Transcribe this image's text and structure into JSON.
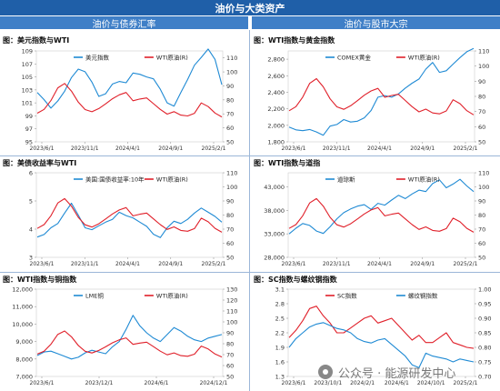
{
  "header": {
    "title": "油价与大类资产"
  },
  "sections": {
    "left": "油价与债券汇率",
    "right": "油价与股市大宗"
  },
  "watermark": {
    "text": "公众号 · 能源研发中心"
  },
  "colors": {
    "blue": "#1f8ad4",
    "red": "#e0202a",
    "header_bg": "#1f5fa8",
    "subheader_bg": "#3f7fc7"
  },
  "chart_data": [
    {
      "id": "c1",
      "title": "图：美元指数与WTI",
      "type": "line",
      "x_ticks": [
        "2023/6/1",
        "2023/11/1",
        "2024/4/1",
        "2024/9/1",
        "2025/2/1"
      ],
      "y_left": {
        "min": 95,
        "max": 109,
        "ticks": [
          "95",
          "97",
          "99",
          "101",
          "103",
          "105",
          "107",
          "109"
        ]
      },
      "y_right": {
        "min": 50,
        "max": 115,
        "ticks": [
          "50",
          "60",
          "70",
          "80",
          "90",
          "100",
          "110"
        ]
      },
      "series": [
        {
          "name": "美元指数",
          "axis": "left",
          "color": "#1f8ad4",
          "values": [
            102.6,
            101.5,
            100.2,
            101.3,
            102.8,
            104.9,
            106.2,
            105.8,
            104.2,
            102.0,
            102.4,
            103.9,
            104.3,
            104.1,
            105.6,
            105.4,
            105.0,
            104.7,
            103.1,
            101.0,
            100.5,
            102.6,
            104.6,
            106.8,
            108.0,
            109.3,
            107.7,
            103.8
          ]
        },
        {
          "name": "WTI原油(R)",
          "axis": "right",
          "color": "#e0202a",
          "values": [
            70.5,
            73.2,
            79.5,
            88.6,
            91.7,
            86.3,
            78.4,
            73.1,
            71.5,
            73.8,
            77.2,
            80.8,
            83.6,
            85.3,
            79.4,
            80.6,
            81.4,
            77.3,
            73.2,
            69.8,
            71.6,
            69.1,
            68.5,
            70.4,
            77.8,
            75.2,
            70.6,
            67.8
          ]
        }
      ]
    },
    {
      "id": "c2",
      "title": "图：WTI指数与黄金指数",
      "type": "line",
      "x_ticks": [
        "2023/6/1",
        "2023/11/1",
        "2024/4/1",
        "2024/9/1",
        "2025/2/1"
      ],
      "y_left": {
        "min": 1800,
        "max": 2900,
        "ticks": [
          "1,800",
          "2,000",
          "2,200",
          "2,400",
          "2,600",
          "2,800"
        ]
      },
      "y_right": {
        "min": 50,
        "max": 110,
        "ticks": [
          "50",
          "60",
          "70",
          "80",
          "90",
          "100",
          "110"
        ]
      },
      "series": [
        {
          "name": "COMEX黄金",
          "axis": "left",
          "color": "#1f8ad4",
          "values": [
            1978,
            1945,
            1935,
            1950,
            1920,
            1880,
            1990,
            2010,
            2070,
            2040,
            2050,
            2090,
            2180,
            2340,
            2360,
            2340,
            2380,
            2450,
            2510,
            2560,
            2680,
            2760,
            2640,
            2660,
            2740,
            2820,
            2890,
            2930
          ]
        },
        {
          "name": "WTI原油(R)",
          "axis": "right",
          "color": "#e0202a",
          "values": [
            70.5,
            73.2,
            79.5,
            88.6,
            91.7,
            86.3,
            78.4,
            73.1,
            71.5,
            73.8,
            77.2,
            80.8,
            83.6,
            85.3,
            79.4,
            80.6,
            81.4,
            77.3,
            73.2,
            69.8,
            71.6,
            69.1,
            68.5,
            70.4,
            77.8,
            75.2,
            70.6,
            67.8
          ]
        }
      ]
    },
    {
      "id": "c3",
      "title": "图：美债收益率与WTI",
      "type": "line",
      "x_ticks": [
        "2023/6/1",
        "2023/11/1",
        "2024/4/1",
        "2024/9/1",
        "2025/2/1"
      ],
      "y_left": {
        "min": 3,
        "max": 6,
        "ticks": [
          "3",
          "4",
          "5",
          "6"
        ]
      },
      "y_right": {
        "min": 50,
        "max": 110,
        "ticks": [
          "50",
          "60",
          "70",
          "80",
          "90",
          "100",
          "110"
        ]
      },
      "series": [
        {
          "name": "美国:国债收益率:10年",
          "axis": "left",
          "color": "#1f8ad4",
          "values": [
            3.72,
            3.81,
            4.05,
            4.2,
            4.57,
            4.92,
            4.5,
            4.05,
            3.98,
            4.12,
            4.25,
            4.35,
            4.6,
            4.48,
            4.4,
            4.25,
            4.1,
            3.82,
            3.7,
            4.05,
            4.28,
            4.2,
            4.35,
            4.57,
            4.75,
            4.6,
            4.45,
            4.25
          ]
        },
        {
          "name": "WTI原油(R)",
          "axis": "right",
          "color": "#e0202a",
          "values": [
            70.5,
            73.2,
            79.5,
            88.6,
            91.7,
            86.3,
            78.4,
            73.1,
            71.5,
            73.8,
            77.2,
            80.8,
            83.6,
            85.3,
            79.4,
            80.6,
            81.4,
            77.3,
            73.2,
            69.8,
            71.6,
            69.1,
            68.5,
            70.4,
            77.8,
            75.2,
            70.6,
            67.8
          ]
        }
      ]
    },
    {
      "id": "c4",
      "title": "图：WTI指数与道指",
      "type": "line",
      "x_ticks": [
        "2023/6/1",
        "2023/11/1",
        "2024/4/1",
        "2024/9/1",
        "2025/2/1"
      ],
      "y_left": {
        "min": 28000,
        "max": 46000,
        "ticks": [
          "28,000",
          "33,000",
          "38,000",
          "43,000"
        ]
      },
      "y_right": {
        "min": 50,
        "max": 110,
        "ticks": [
          "50",
          "60",
          "70",
          "80",
          "90",
          "100",
          "110"
        ]
      },
      "series": [
        {
          "name": "道琼斯",
          "axis": "left",
          "color": "#1f8ad4",
          "values": [
            33000,
            34200,
            35200,
            34800,
            33600,
            33100,
            34500,
            36200,
            37500,
            38300,
            38900,
            39200,
            38200,
            39500,
            39100,
            40200,
            41200,
            40500,
            41500,
            42300,
            42000,
            43700,
            44500,
            42800,
            43600,
            44600,
            43200,
            42000
          ]
        },
        {
          "name": "WTI原油(R)",
          "axis": "right",
          "color": "#e0202a",
          "values": [
            70.5,
            73.2,
            79.5,
            88.6,
            91.7,
            86.3,
            78.4,
            73.1,
            71.5,
            73.8,
            77.2,
            80.8,
            83.6,
            85.3,
            79.4,
            80.6,
            81.4,
            77.3,
            73.2,
            69.8,
            71.6,
            69.1,
            68.5,
            70.4,
            77.8,
            75.2,
            70.6,
            67.8
          ]
        }
      ]
    },
    {
      "id": "c5",
      "title": "图：WTI指数与铜指数",
      "type": "line",
      "x_ticks": [
        "2023/6/1",
        "2023/12/1",
        "2024/6/1",
        "2024/12/1"
      ],
      "y_left": {
        "min": 7000,
        "max": 12000,
        "ticks": [
          "7,000",
          "8,000",
          "9,000",
          "10,000",
          "11,000",
          "12,000"
        ]
      },
      "y_right": {
        "min": 50,
        "max": 130,
        "ticks": [
          "50",
          "60",
          "70",
          "80",
          "90",
          "100",
          "110",
          "120",
          "130"
        ]
      },
      "series": [
        {
          "name": "LME铜",
          "axis": "left",
          "color": "#1f8ad4",
          "values": [
            8200,
            8400,
            8450,
            8300,
            8150,
            8000,
            8100,
            8350,
            8500,
            8400,
            8300,
            8700,
            9000,
            9700,
            10500,
            9900,
            9500,
            9200,
            9000,
            9400,
            9800,
            9600,
            9300,
            9100,
            9000,
            9200,
            9300,
            9400
          ]
        },
        {
          "name": "WTI原油(R)",
          "axis": "right",
          "color": "#e0202a",
          "values": [
            70.5,
            73.2,
            79.5,
            88.6,
            91.7,
            86.3,
            78.4,
            73.1,
            71.5,
            73.8,
            77.2,
            80.8,
            83.6,
            85.3,
            79.4,
            80.6,
            81.4,
            77.3,
            73.2,
            69.8,
            71.6,
            69.1,
            68.5,
            70.4,
            77.8,
            75.2,
            70.6,
            67.8
          ]
        }
      ]
    },
    {
      "id": "c6",
      "title": "图：SC指数与螺纹钢指数",
      "type": "line",
      "x_ticks": [
        "2023/6/1",
        "2023/10/1",
        "2024/2/1",
        "2024/6/1",
        "2024/10/1",
        "2025/2/1"
      ],
      "y_left": {
        "min": 1.3,
        "max": 3.1,
        "ticks": [
          "1.3",
          "1.6",
          "1.9",
          "2.2",
          "2.5",
          "2.8",
          "3.1"
        ]
      },
      "y_right": {
        "min": 0.7,
        "max": 1.0,
        "ticks": [
          "0.70",
          "0.75",
          "0.80",
          "0.85",
          "0.90",
          "0.95",
          "1.00"
        ]
      },
      "series": [
        {
          "name": "SC指数",
          "axis": "left",
          "color": "#e0202a",
          "values": [
            2.1,
            2.25,
            2.45,
            2.7,
            2.75,
            2.55,
            2.4,
            2.2,
            2.2,
            2.3,
            2.4,
            2.5,
            2.55,
            2.4,
            2.45,
            2.5,
            2.35,
            2.2,
            2.05,
            2.15,
            2.0,
            2.0,
            2.1,
            2.2,
            2.0,
            1.95,
            1.9,
            1.88
          ]
        },
        {
          "name": "螺纹钢指数",
          "axis": "right",
          "color": "#1f8ad4",
          "values": [
            0.8,
            0.83,
            0.85,
            0.87,
            0.88,
            0.885,
            0.875,
            0.865,
            0.86,
            0.85,
            0.83,
            0.82,
            0.815,
            0.825,
            0.83,
            0.81,
            0.79,
            0.77,
            0.74,
            0.73,
            0.78,
            0.77,
            0.765,
            0.76,
            0.75,
            0.76,
            0.755,
            0.75
          ]
        }
      ]
    }
  ]
}
